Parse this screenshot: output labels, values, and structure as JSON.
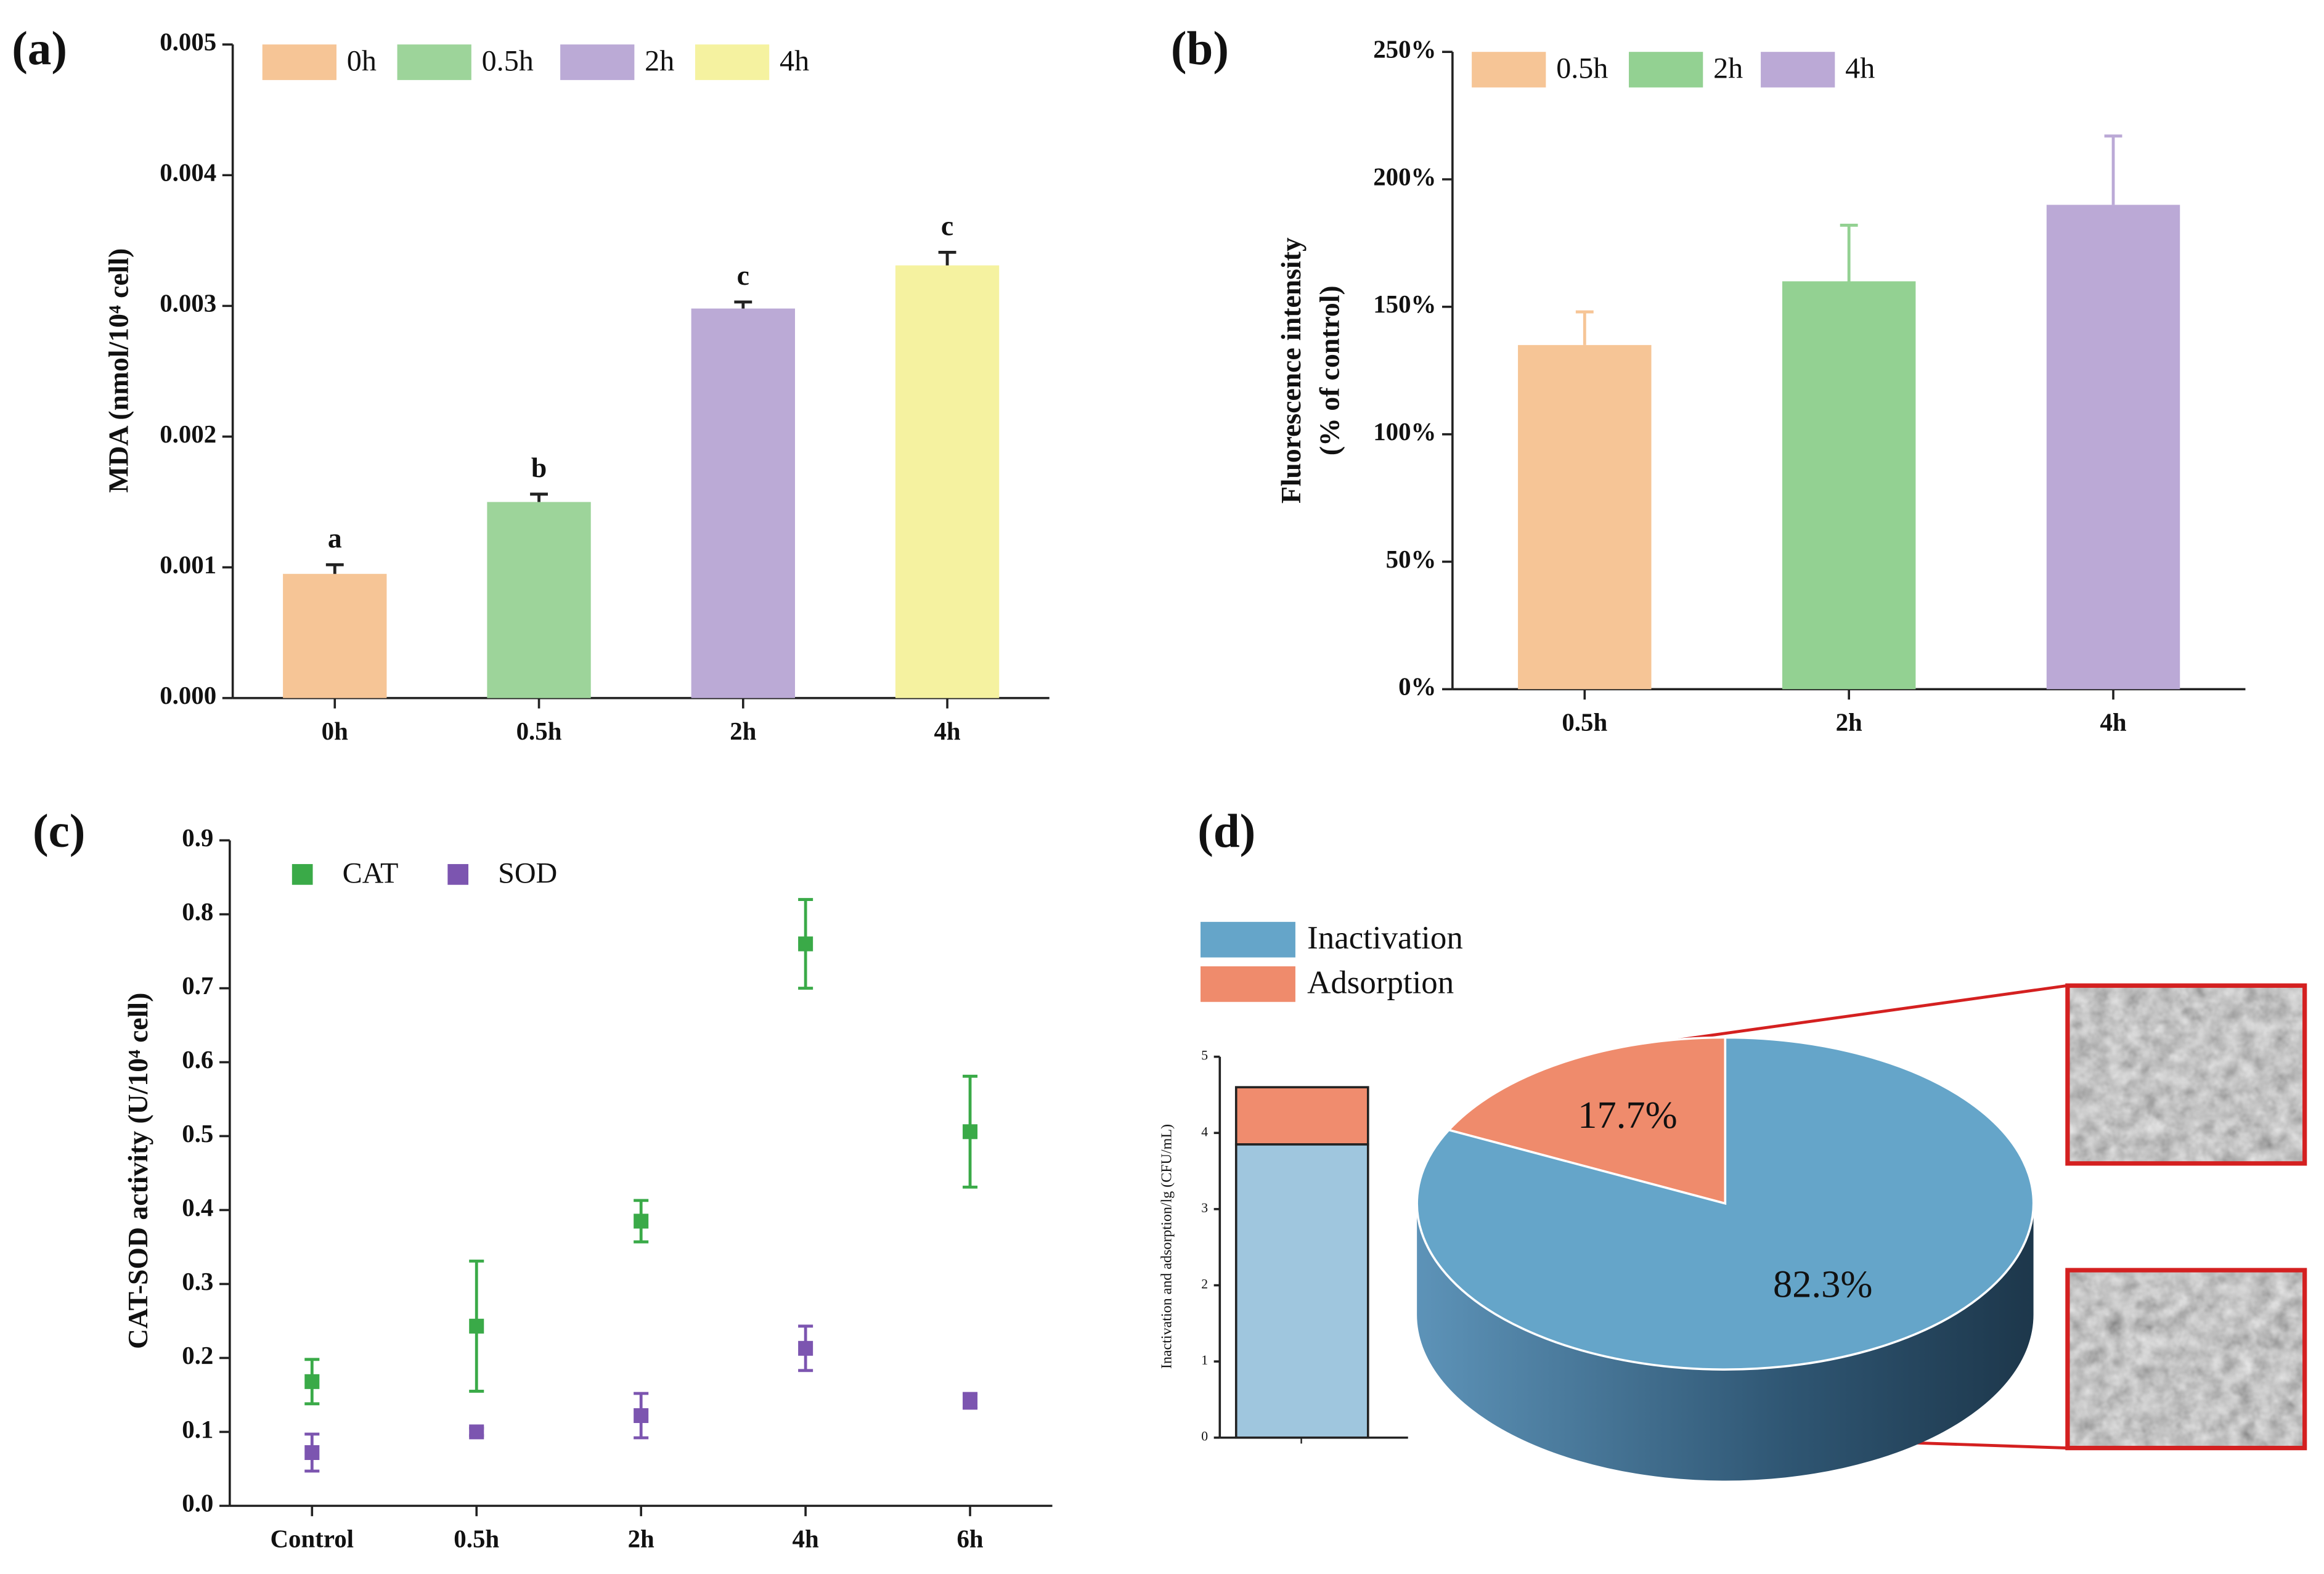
{
  "chart_data": [
    {
      "type": "bar",
      "panel_label": "(a)",
      "ylabel": "MDA (nmol/10⁴ cell)",
      "categories": [
        "0h",
        "0.5h",
        "2h",
        "4h"
      ],
      "values": [
        0.00095,
        0.0015,
        0.00298,
        0.00331
      ],
      "errors": [
        7e-05,
        6e-05,
        5e-05,
        0.0001
      ],
      "colors": [
        "#f6c596",
        "#9dd49a",
        "#bbaad6",
        "#f5f2a0"
      ],
      "annotations": [
        "a",
        "b",
        "c",
        "c"
      ],
      "ylim": [
        0,
        0.005
      ],
      "yticks": [
        {
          "value": 0,
          "label": "0.000"
        },
        0.001,
        0.002,
        0.003,
        0.004,
        0.005
      ]
    },
    {
      "type": "bar",
      "panel_label": "(b)",
      "ylabel": [
        "Fluorescence intensity",
        "(% of control)"
      ],
      "categories": [
        "0.5h",
        "2h",
        "4h"
      ],
      "values": [
        135,
        160,
        190
      ],
      "errors": [
        13,
        22,
        27
      ],
      "colors": [
        "#f6c596",
        "#93d192",
        "#bba9d6"
      ],
      "ylim": [
        0,
        250
      ],
      "yticks": [
        {
          "value": 0,
          "label": "0%"
        },
        {
          "value": 50,
          "label": "50%"
        },
        {
          "value": 100,
          "label": "100%"
        },
        {
          "value": 150,
          "label": "150%"
        },
        {
          "value": 200,
          "label": "200%"
        },
        {
          "value": 250,
          "label": "250%"
        }
      ]
    },
    {
      "type": "scatter",
      "panel_label": "(c)",
      "ylabel": "CAT-SOD activity (U/10⁴ cell)",
      "categories": [
        "Control",
        "0.5h",
        "2h",
        "4h",
        "6h"
      ],
      "series": [
        {
          "name": "CAT",
          "color": "#3aaa48",
          "values": [
            0.168,
            0.243,
            0.385,
            0.76,
            0.506
          ],
          "errors": [
            0.03,
            0.088,
            0.028,
            0.06,
            0.075
          ]
        },
        {
          "name": "SOD",
          "color": "#7c55b0",
          "values": [
            0.072,
            0.1,
            0.122,
            0.213,
            0.142
          ],
          "errors": [
            0.025,
            0.005,
            0.03,
            0.03,
            0.01
          ]
        }
      ],
      "ylim": [
        0,
        0.9
      ],
      "yticks": [
        {
          "value": 0,
          "label": "0.0"
        },
        0.1,
        0.2,
        0.3,
        0.4,
        0.5,
        0.6,
        0.7,
        0.8,
        0.9
      ]
    },
    {
      "type": "pie",
      "panel_label": "(d)",
      "names": [
        "Inactivation",
        "Adsorption"
      ],
      "values": [
        82.3,
        17.7
      ],
      "value_labels": [
        "82.3%",
        "17.7%"
      ],
      "colors": [
        "#65a5c9",
        "#ef8b6c"
      ],
      "inset": {
        "type": "bar",
        "ylabel": "Inactivation and adsorption/lg (CFU/mL)",
        "values": [
          3.85,
          0.75
        ],
        "colors": [
          "#9fc6de",
          "#f08c6e"
        ],
        "ylim": [
          0,
          5
        ],
        "yticks": [
          0,
          1,
          2,
          3,
          4,
          5
        ]
      }
    }
  ]
}
